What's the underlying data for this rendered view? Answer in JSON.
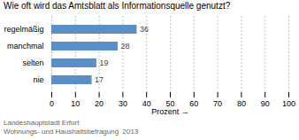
{
  "chart_data": {
    "type": "bar",
    "orientation": "horizontal",
    "title": "Wie oft wird das Amtsblatt als Informationsquelle genutzt?",
    "categories": [
      "nie",
      "selten",
      "manchmal",
      "regelmäßig"
    ],
    "values": [
      17,
      19,
      28,
      36
    ],
    "color": "#5b8ec4",
    "xlabel": "Prozent",
    "xlim": [
      0,
      100
    ],
    "xticks": [
      0,
      10,
      20,
      30,
      40,
      50,
      60,
      70,
      80,
      90,
      100
    ],
    "grid": true,
    "data_labels": true,
    "annotations": [
      "Landeshauptstadt Erfurt",
      "Wohnungs- und Haushaltsbefragung  2013"
    ]
  }
}
